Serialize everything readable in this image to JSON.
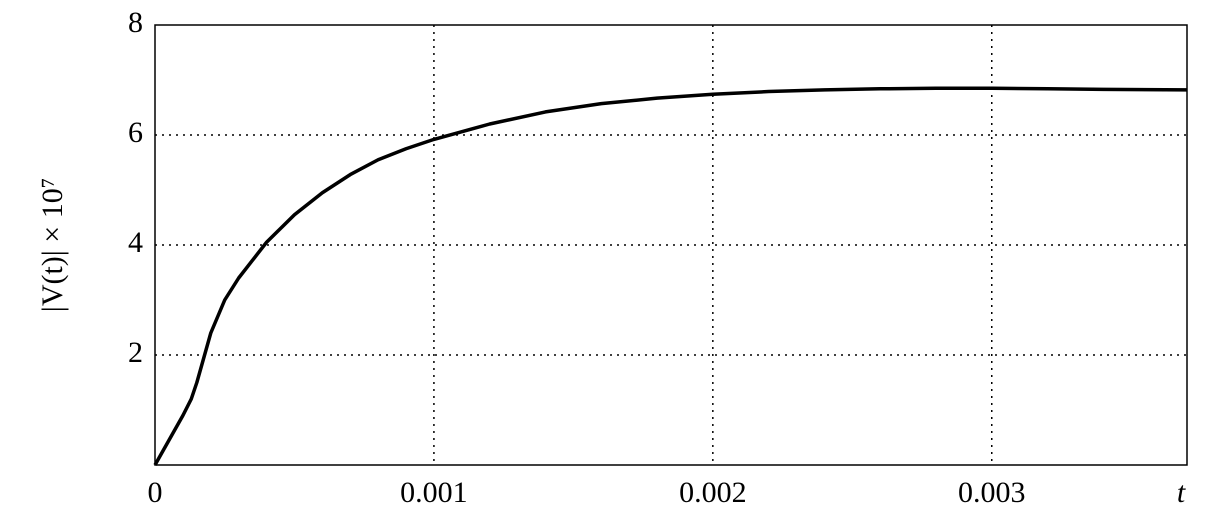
{
  "chart_data": {
    "type": "line",
    "x_label": "t",
    "y_label": "|V(t)| × 10⁷",
    "x": [
      0,
      5e-05,
      0.0001,
      0.00013,
      0.00015,
      0.0002,
      0.00025,
      0.0003,
      0.0004,
      0.0005,
      0.0006,
      0.0007,
      0.0008,
      0.0009,
      0.001,
      0.0012,
      0.0014,
      0.0016,
      0.0018,
      0.002,
      0.0022,
      0.0024,
      0.0026,
      0.0028,
      0.003,
      0.0032,
      0.0034,
      0.0037
    ],
    "series": [
      {
        "color": "#000000",
        "values": [
          0,
          0.45,
          0.9,
          1.2,
          1.5,
          2.4,
          3.0,
          3.4,
          4.05,
          4.55,
          4.95,
          5.28,
          5.55,
          5.75,
          5.92,
          6.2,
          6.42,
          6.57,
          6.67,
          6.74,
          6.79,
          6.82,
          6.84,
          6.85,
          6.85,
          6.84,
          6.83,
          6.82
        ]
      }
    ],
    "xlim": [
      0,
      0.0037
    ],
    "ylim": [
      0,
      8
    ],
    "xticks": [
      0,
      0.001,
      0.002,
      0.003
    ],
    "yticks": [
      2,
      4,
      6,
      8
    ],
    "grid": true
  }
}
